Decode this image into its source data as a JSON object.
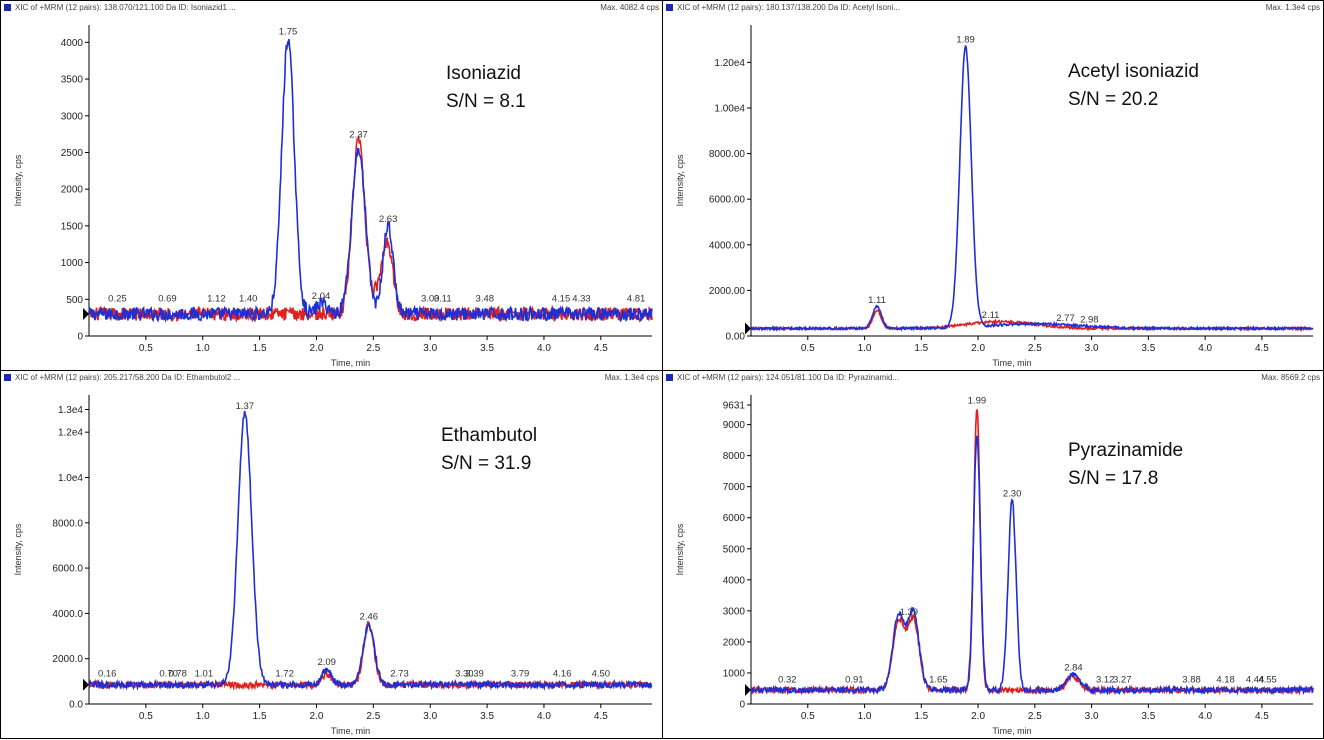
{
  "colors": {
    "analyte": "#1e2fd6",
    "ref": "#e0201f",
    "axis": "#000000",
    "header_icon": "#1c2aa8"
  },
  "chart_data": [
    {
      "type": "line",
      "header": "XIC of +MRM (12 pairs): 138.070/121.100 Da ID: Isoniazid1 ...",
      "max": "Max. 4082.4 cps",
      "annotation": [
        "Isoniazid",
        "S/N = 8.1"
      ],
      "xlabel": "Time, min",
      "ylabel": "Intensity, cps",
      "xlim": [
        0,
        4.95
      ],
      "ylim": [
        0,
        4100
      ],
      "xticks": [
        0.5,
        1.0,
        1.5,
        2.0,
        2.5,
        3.0,
        3.5,
        4.0,
        4.5
      ],
      "xtick_labels": [
        "0.5",
        "1.0",
        "1.5",
        "2.0",
        "2.5",
        "3.0",
        "3.5",
        "4.0",
        "4.5"
      ],
      "yticks": [
        0,
        500,
        1000,
        1500,
        2000,
        2500,
        3000,
        3500,
        4000
      ],
      "ytick_labels": [
        "0",
        "500",
        "1000",
        "1500",
        "2000",
        "2500",
        "3000",
        "3500",
        "4000"
      ],
      "baseline": 300,
      "noise": 90,
      "series": [
        {
          "peaks": [
            [
              1.75,
              3750,
              0.055
            ],
            [
              2.37,
              2250,
              0.06
            ],
            [
              2.63,
              1200,
              0.045
            ],
            [
              2.05,
              150,
              0.05
            ]
          ]
        },
        {
          "peaks": [
            [
              2.37,
              2350,
              0.055
            ],
            [
              2.63,
              900,
              0.045
            ],
            [
              2.55,
              300,
              0.05
            ]
          ]
        }
      ],
      "peak_labels": [
        {
          "x": 0.25,
          "label": "0.25"
        },
        {
          "x": 0.69,
          "label": "0.69"
        },
        {
          "x": 1.12,
          "label": "1.12"
        },
        {
          "x": 1.4,
          "label": "1.40"
        },
        {
          "x": 1.75,
          "label": "1.75"
        },
        {
          "x": 2.04,
          "label": "2.04"
        },
        {
          "x": 2.37,
          "label": "2.37"
        },
        {
          "x": 2.63,
          "label": "2.63"
        },
        {
          "x": 3.0,
          "label": "3.00"
        },
        {
          "x": 3.11,
          "label": "3.11"
        },
        {
          "x": 3.48,
          "label": "3.48"
        },
        {
          "x": 4.15,
          "label": "4.15"
        },
        {
          "x": 4.33,
          "label": "4.33"
        },
        {
          "x": 4.81,
          "label": "4.81"
        }
      ]
    },
    {
      "type": "line",
      "header": "XIC of +MRM (12 pairs): 180.137/138.200 Da ID: Acetyl Isoni...",
      "max": "Max. 1.3e4 cps",
      "annotation": [
        "Acetyl isoniazid",
        "S/N = 20.2"
      ],
      "xlabel": "Time, min",
      "ylabel": "Intensity, cps",
      "xlim": [
        0,
        4.95
      ],
      "ylim": [
        0,
        13200
      ],
      "xticks": [
        0.5,
        1.0,
        1.5,
        2.0,
        2.5,
        3.0,
        3.5,
        4.0,
        4.5
      ],
      "xtick_labels": [
        "0.5",
        "1.0",
        "1.5",
        "2.0",
        "2.5",
        "3.0",
        "3.5",
        "4.0",
        "4.5"
      ],
      "yticks": [
        0,
        2000,
        4000,
        6000,
        8000,
        10000,
        12000
      ],
      "ytick_labels": [
        "0.00",
        "2000.00",
        "4000.00",
        "6000.00",
        "8000.00",
        "1.00e4",
        "1.20e4"
      ],
      "baseline": 330,
      "noise": 50,
      "series": [
        {
          "peaks": [
            [
              1.89,
              12300,
              0.05
            ],
            [
              1.11,
              950,
              0.04
            ],
            [
              2.5,
              200,
              0.4
            ]
          ]
        },
        {
          "peaks": [
            [
              1.11,
              800,
              0.035
            ],
            [
              2.2,
              300,
              0.3
            ]
          ]
        }
      ],
      "peak_labels": [
        {
          "x": 1.11,
          "label": "1.11"
        },
        {
          "x": 1.89,
          "label": "1.89"
        },
        {
          "x": 2.11,
          "label": "2.11"
        },
        {
          "x": 2.77,
          "label": "2.77"
        },
        {
          "x": 2.98,
          "label": "2.98"
        }
      ]
    },
    {
      "type": "line",
      "header": "XIC of +MRM (12 pairs): 205.217/58.200 Da ID: Ethambutol2 ...",
      "max": "Max. 1.3e4 cps",
      "annotation": [
        "Ethambutol",
        "S/N = 31.9"
      ],
      "xlabel": "Time, min",
      "ylabel": "Intensity, cps",
      "xlim": [
        0,
        4.95
      ],
      "ylim": [
        0,
        13200
      ],
      "xticks": [
        0.5,
        1.0,
        1.5,
        2.0,
        2.5,
        3.0,
        3.5,
        4.0,
        4.5
      ],
      "xtick_labels": [
        "0.5",
        "1.0",
        "1.5",
        "2.0",
        "2.5",
        "3.0",
        "3.5",
        "4.0",
        "4.5"
      ],
      "yticks": [
        0,
        2000,
        4000,
        6000,
        8000,
        10000,
        12000,
        13000
      ],
      "ytick_labels": [
        "0.0",
        "2000.0",
        "4000.0",
        "6000.0",
        "8000.0",
        "1.0e4",
        "1.2e4",
        "1.3e4"
      ],
      "baseline": 850,
      "noise": 140,
      "series": [
        {
          "peaks": [
            [
              1.37,
              12000,
              0.06
            ],
            [
              2.46,
              2600,
              0.05
            ],
            [
              2.09,
              700,
              0.04
            ]
          ]
        },
        {
          "peaks": [
            [
              2.46,
              2700,
              0.045
            ],
            [
              2.09,
              500,
              0.04
            ]
          ]
        }
      ],
      "peak_labels": [
        {
          "x": 0.16,
          "label": "0.16"
        },
        {
          "x": 0.7,
          "label": "0.70"
        },
        {
          "x": 0.78,
          "label": "0.78"
        },
        {
          "x": 1.01,
          "label": "1.01"
        },
        {
          "x": 1.37,
          "label": "1.37"
        },
        {
          "x": 1.72,
          "label": "1.72"
        },
        {
          "x": 2.09,
          "label": "2.09"
        },
        {
          "x": 2.46,
          "label": "2.46"
        },
        {
          "x": 2.73,
          "label": "2.73"
        },
        {
          "x": 3.3,
          "label": "3.30"
        },
        {
          "x": 3.39,
          "label": "3.39"
        },
        {
          "x": 3.79,
          "label": "3.79"
        },
        {
          "x": 4.16,
          "label": "4.16"
        },
        {
          "x": 4.5,
          "label": "4.50"
        }
      ]
    },
    {
      "type": "line",
      "header": "XIC of +MRM (12 pairs): 124.051/81.100 Da ID: Pyrazinamid...",
      "max": "Max. 8569.2 cps",
      "annotation": [
        "Pyrazinamide",
        "S/N = 17.8"
      ],
      "xlabel": "Time, min",
      "ylabel": "Intensity, cps",
      "xlim": [
        0,
        4.95
      ],
      "ylim": [
        0,
        9631
      ],
      "xticks": [
        0.5,
        1.0,
        1.5,
        2.0,
        2.5,
        3.0,
        3.5,
        4.0,
        4.5
      ],
      "xtick_labels": [
        "0.5",
        "1.0",
        "1.5",
        "2.0",
        "2.5",
        "3.0",
        "3.5",
        "4.0",
        "4.5"
      ],
      "yticks": [
        0,
        1000,
        2000,
        3000,
        4000,
        5000,
        6000,
        7000,
        8000,
        9000,
        9631
      ],
      "ytick_labels": [
        "0",
        "1000",
        "2000",
        "3000",
        "4000",
        "5000",
        "6000",
        "7000",
        "8000",
        "9000",
        "9631"
      ],
      "baseline": 450,
      "noise": 90,
      "series": [
        {
          "peaks": [
            [
              1.3,
              2400,
              0.05
            ],
            [
              1.43,
              2500,
              0.05
            ],
            [
              1.99,
              8200,
              0.03
            ],
            [
              2.3,
              6100,
              0.035
            ],
            [
              2.84,
              500,
              0.06
            ]
          ]
        },
        {
          "peaks": [
            [
              1.3,
              2200,
              0.05
            ],
            [
              1.43,
              2300,
              0.05
            ],
            [
              1.99,
              9100,
              0.028
            ],
            [
              2.84,
              400,
              0.06
            ]
          ]
        }
      ],
      "peak_labels": [
        {
          "x": 0.32,
          "label": "0.32"
        },
        {
          "x": 0.91,
          "label": "0.91"
        },
        {
          "x": 1.39,
          "label": "1.39"
        },
        {
          "x": 1.65,
          "label": "1.65"
        },
        {
          "x": 1.99,
          "label": "1.99"
        },
        {
          "x": 2.3,
          "label": "2.30"
        },
        {
          "x": 2.84,
          "label": "2.84"
        },
        {
          "x": 3.12,
          "label": "3.12"
        },
        {
          "x": 3.27,
          "label": "3.27"
        },
        {
          "x": 3.88,
          "label": "3.88"
        },
        {
          "x": 4.18,
          "label": "4.18"
        },
        {
          "x": 4.44,
          "label": "4.44"
        },
        {
          "x": 4.55,
          "label": "4.55"
        }
      ]
    }
  ]
}
